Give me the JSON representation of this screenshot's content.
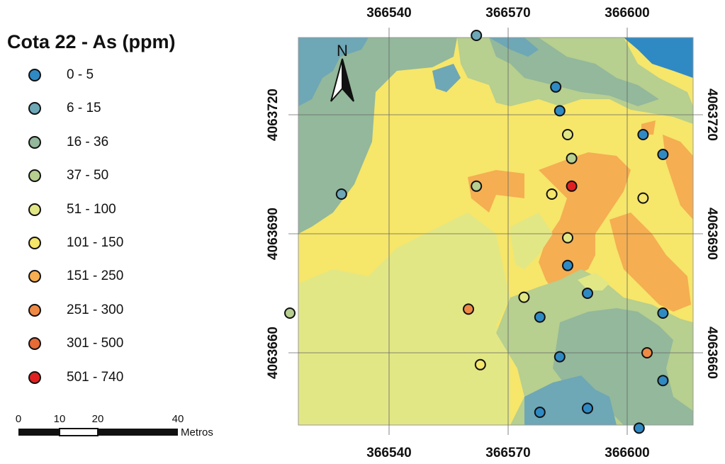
{
  "legend": {
    "title": "Cota 22 - As (ppm)",
    "classes": [
      {
        "label": "0 - 5",
        "color": "#2f8ac4"
      },
      {
        "label": "6 - 15",
        "color": "#6ea7b6"
      },
      {
        "label": "16 - 36",
        "color": "#93b89b"
      },
      {
        "label": "37 - 50",
        "color": "#b7cf8f"
      },
      {
        "label": "51 - 100",
        "color": "#e2e785"
      },
      {
        "label": "101 - 150",
        "color": "#f6e66a"
      },
      {
        "label": "151 - 250",
        "color": "#f5ae52"
      },
      {
        "label": "251 - 300",
        "color": "#ef8a44"
      },
      {
        "label": "301 - 500",
        "color": "#e86a35"
      },
      {
        "label": "501 - 740",
        "color": "#e02020"
      }
    ]
  },
  "scale": {
    "ticks": [
      "0",
      "10",
      "20",
      "40"
    ],
    "unit": "Metros"
  },
  "north_label": "N",
  "grid": {
    "x_labels": [
      "366540",
      "366570",
      "366600"
    ],
    "y_labels": [
      "4063720",
      "4063690",
      "4063660"
    ]
  },
  "zone_colors": {
    "c0": "#2f8ac4",
    "c1": "#6ea7b6",
    "c2": "#93b89b",
    "c3": "#b7cf8f",
    "c4": "#e2e785",
    "c5": "#f6e66a",
    "c6": "#f5ae52"
  },
  "samples": [
    {
      "x": 366562,
      "y": 4063740,
      "cls": 1
    },
    {
      "x": 366582,
      "y": 4063727,
      "cls": 0
    },
    {
      "x": 366583,
      "y": 4063721,
      "cls": 0
    },
    {
      "x": 366585,
      "y": 4063715,
      "cls": 4
    },
    {
      "x": 366604,
      "y": 4063715,
      "cls": 0
    },
    {
      "x": 366609,
      "y": 4063710,
      "cls": 0
    },
    {
      "x": 366586,
      "y": 4063709,
      "cls": 3
    },
    {
      "x": 366562,
      "y": 4063702,
      "cls": 3
    },
    {
      "x": 366581,
      "y": 4063700,
      "cls": 5
    },
    {
      "x": 366586,
      "y": 4063702,
      "cls": 9
    },
    {
      "x": 366604,
      "y": 4063699,
      "cls": 5
    },
    {
      "x": 366528,
      "y": 4063700,
      "cls": 1
    },
    {
      "x": 366585,
      "y": 4063689,
      "cls": 4
    },
    {
      "x": 366585,
      "y": 4063682,
      "cls": 0
    },
    {
      "x": 366590,
      "y": 4063675,
      "cls": 0
    },
    {
      "x": 366574,
      "y": 4063674,
      "cls": 4
    },
    {
      "x": 366560,
      "y": 4063671,
      "cls": 7
    },
    {
      "x": 366578,
      "y": 4063669,
      "cls": 0
    },
    {
      "x": 366515,
      "y": 4063670,
      "cls": 3
    },
    {
      "x": 366609,
      "y": 4063670,
      "cls": 0
    },
    {
      "x": 366605,
      "y": 4063660,
      "cls": 7
    },
    {
      "x": 366583,
      "y": 4063659,
      "cls": 0
    },
    {
      "x": 366563,
      "y": 4063657,
      "cls": 5
    },
    {
      "x": 366609,
      "y": 4063653,
      "cls": 0
    },
    {
      "x": 366590,
      "y": 4063646,
      "cls": 0
    },
    {
      "x": 366578,
      "y": 4063645,
      "cls": 0
    },
    {
      "x": 366603,
      "y": 4063641,
      "cls": 0
    }
  ]
}
